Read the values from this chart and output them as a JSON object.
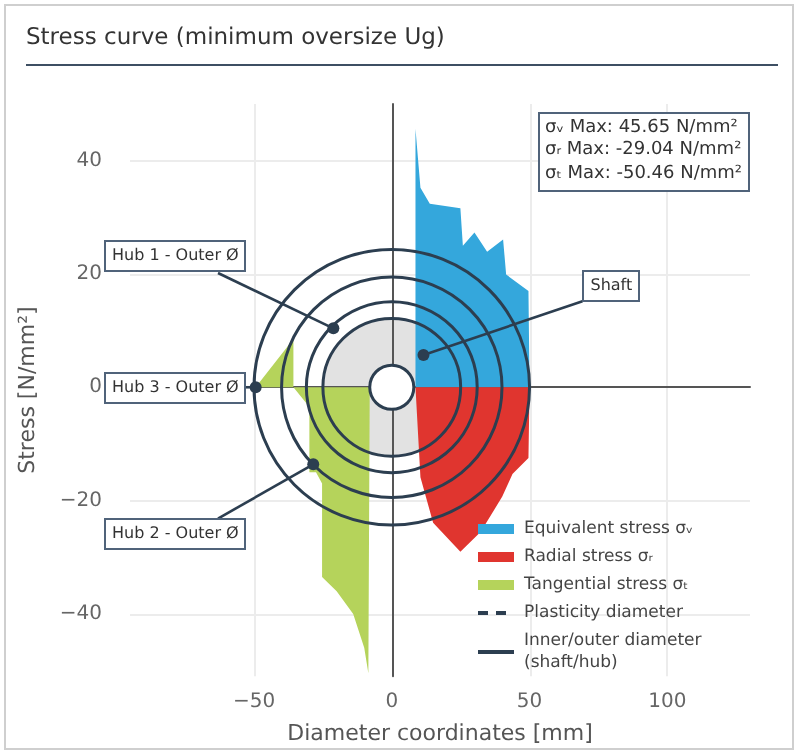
{
  "chart_data": {
    "type": "area",
    "title": "Stress curve (minimum oversize Ug)",
    "xlabel": "Diameter coordinates [mm]",
    "ylabel": "Stress [N/mm²]",
    "xlim": [
      -95,
      130
    ],
    "xticks": [
      {
        "value": -50,
        "label": "−50"
      },
      0,
      50,
      100
    ],
    "ylim": [
      -51,
      50
    ],
    "yticks": [
      {
        "value": -40,
        "label": "−40"
      },
      {
        "value": -20,
        "label": "−20"
      },
      0,
      20,
      40
    ],
    "grid": true,
    "legend": "bottom right",
    "series": [
      {
        "name": "Equivalent stress σᵥ",
        "color": "#34a7dc",
        "x": [
          8.6,
          8.6,
          10.4,
          13.8,
          24.9,
          25.8,
          30,
          34.6,
          40.4,
          41.5,
          49.6,
          50
        ],
        "values": [
          0,
          45.65,
          35.2,
          32.4,
          31.6,
          25,
          27.3,
          23.9,
          26.1,
          19.9,
          17,
          0
        ]
      },
      {
        "name": "Radial stress σᵣ",
        "color": "#e0352f",
        "x": [
          8.6,
          10.4,
          15,
          24.9,
          32.3,
          40.1,
          43.8,
          49.6,
          50
        ],
        "values": [
          0,
          -15.9,
          -23.9,
          -29.04,
          -25.5,
          -19.3,
          -15.3,
          -12.5,
          0
        ]
      },
      {
        "name": "Tangential stress σₜ",
        "color": "#b5d35b",
        "x": [
          -49.4,
          -35.7,
          -35.7,
          -29.9,
          -29.9,
          -27.5,
          -25.3,
          -25.3,
          -20,
          -14,
          -10,
          -8.5,
          -8
        ],
        "values": [
          0,
          8.5,
          0,
          -3.5,
          -15,
          -15,
          -17,
          -33.5,
          -36,
          -40,
          -46,
          -50.46,
          0
        ]
      },
      {
        "type": "line",
        "name": "Plasticity diameter",
        "color": "#2c3e50",
        "line_style": "dashed"
      },
      {
        "type": "line",
        "name": "Inner/outer diameter (shaft/hub)",
        "color": "#2c3e50",
        "line_style": "solid"
      }
    ],
    "annotations": [
      {
        "text": "Hub 1 - Outer Ø",
        "x": -21.2,
        "y": 10.4
      },
      {
        "text": "Shaft",
        "x": 11.5,
        "y": 5.7
      },
      {
        "text": "Hub 3 - Outer Ø",
        "x": -49.4,
        "y": 0
      },
      {
        "text": "Hub 2 - Outer Ø",
        "x": -28.5,
        "y": -13.6
      },
      "σᵥ Max: 45.65 N/mm²",
      "σᵣ Max: -29.04 N/mm²",
      "σₜ Max: -50.46 N/mm²"
    ]
  }
}
